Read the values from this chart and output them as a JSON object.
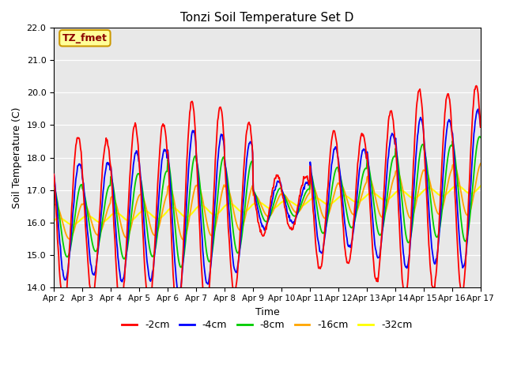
{
  "title": "Tonzi Soil Temperature Set D",
  "xlabel": "Time",
  "ylabel": "Soil Temperature (C)",
  "annotation": "TZ_fmet",
  "ylim": [
    14.0,
    22.0
  ],
  "yticks": [
    14.0,
    15.0,
    16.0,
    17.0,
    18.0,
    19.0,
    20.0,
    21.0,
    22.0
  ],
  "xtick_labels": [
    "Apr 2",
    "Apr 3",
    "Apr 4",
    "Apr 5",
    "Apr 6",
    "Apr 7",
    "Apr 8",
    "Apr 9",
    "Apr 10",
    "Apr 11",
    "Apr 12",
    "Apr 13",
    "Apr 14",
    "Apr 15",
    "Apr 16",
    "Apr 17"
  ],
  "colors": {
    "-2cm": "#ff0000",
    "-4cm": "#0000ff",
    "-8cm": "#00cc00",
    "-16cm": "#ffa500",
    "-32cm": "#ffff00"
  },
  "legend_labels": [
    "-2cm",
    "-4cm",
    "-8cm",
    "-16cm",
    "-32cm"
  ],
  "bg_color": "#e8e8e8",
  "annotation_bg": "#ffff99",
  "annotation_border": "#cc9900",
  "annotation_text_color": "#8b0000"
}
